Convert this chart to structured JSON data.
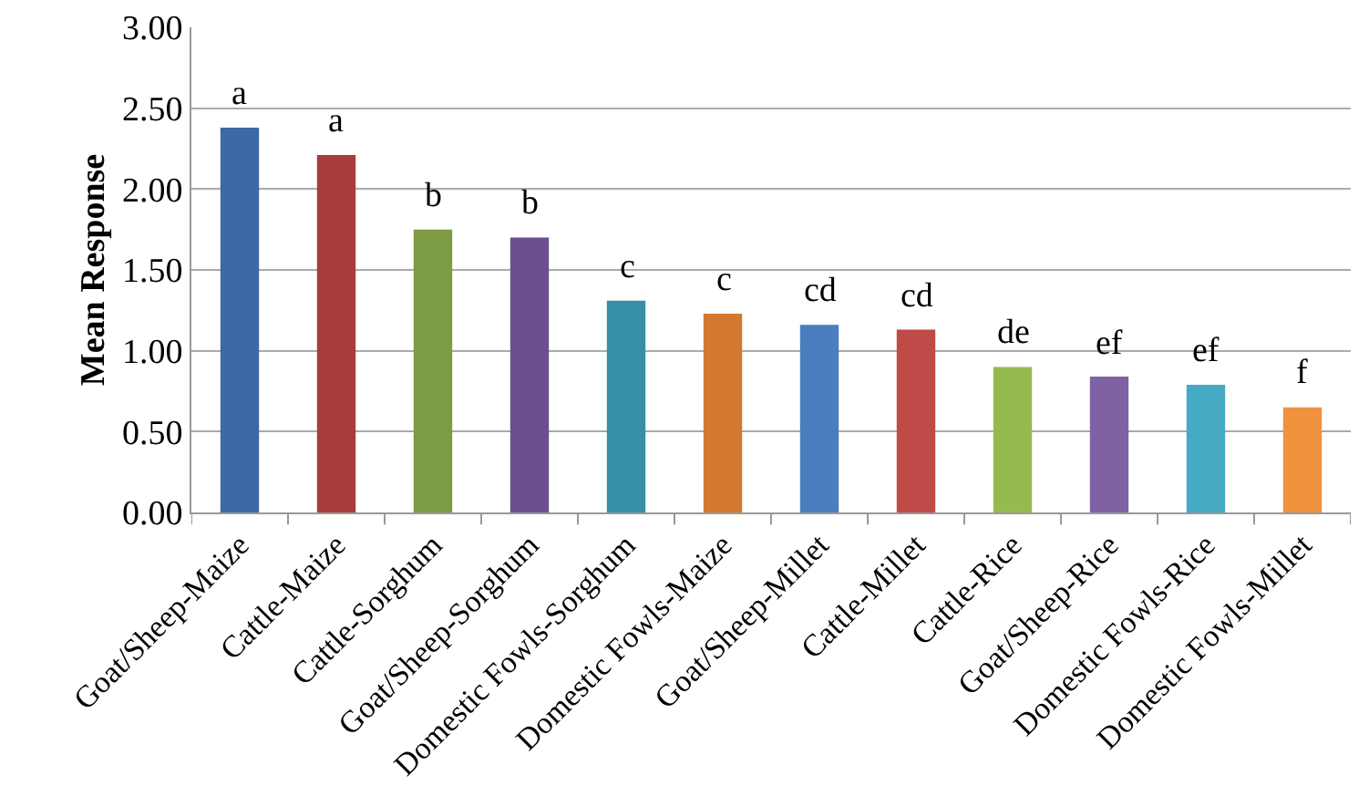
{
  "chart_data": {
    "type": "bar",
    "ylabel": "Mean Response",
    "categories": [
      "Goat/Sheep-Maize",
      "Cattle-Maize",
      "Cattle-Sorghum",
      "Goat/Sheep-Sorghum",
      "Domestic Fowls-Sorghum",
      "Domestic Fowls-Maize",
      "Goat/Sheep-Millet",
      "Cattle-Millet",
      "Cattle-Rice",
      "Goat/Sheep-Rice",
      "Domestic Fowls-Rice",
      "Domestic Fowls-Millet"
    ],
    "values": [
      2.38,
      2.21,
      1.75,
      1.7,
      1.31,
      1.23,
      1.16,
      1.13,
      0.9,
      0.84,
      0.79,
      0.65
    ],
    "colors": [
      "#3d6aa6",
      "#a83c3a",
      "#7d9a45",
      "#6b4f8e",
      "#3690a5",
      "#d2792f",
      "#4a7ebf",
      "#c04a47",
      "#96ba50",
      "#7e62a3",
      "#46aac4",
      "#f0923e"
    ],
    "ylim": [
      0,
      3
    ],
    "yticks": [
      {
        "value": 0,
        "label": "0.00"
      },
      {
        "value": 0.5,
        "label": "0.50"
      },
      {
        "value": 1,
        "label": "1.00"
      },
      {
        "value": 1.5,
        "label": "1.50"
      },
      {
        "value": 2,
        "label": "2.00"
      },
      {
        "value": 2.5,
        "label": "2.50"
      },
      {
        "value": 3,
        "label": "3.00"
      }
    ],
    "grid": "y",
    "annotations": [
      {
        "text": "a",
        "x": "Goat/Sheep-Maize",
        "y": 2.38
      },
      {
        "text": "a",
        "x": "Cattle-Maize",
        "y": 2.21
      },
      {
        "text": "b",
        "x": "Cattle-Sorghum",
        "y": 1.75
      },
      {
        "text": "b",
        "x": "Goat/Sheep-Sorghum",
        "y": 1.7
      },
      {
        "text": "c",
        "x": "Domestic Fowls-Sorghum",
        "y": 1.31
      },
      {
        "text": "c",
        "x": "Domestic Fowls-Maize",
        "y": 1.23
      },
      {
        "text": "cd",
        "x": "Goat/Sheep-Millet",
        "y": 1.16
      },
      {
        "text": "cd",
        "x": "Cattle-Millet",
        "y": 1.13
      },
      {
        "text": "de",
        "x": "Cattle-Rice",
        "y": 0.9
      },
      {
        "text": "ef",
        "x": "Goat/Sheep-Rice",
        "y": 0.84
      },
      {
        "text": "ef",
        "x": "Domestic Fowls-Rice",
        "y": 0.79
      },
      {
        "text": "f",
        "x": "Domestic Fowls-Millet",
        "y": 0.65
      }
    ]
  }
}
